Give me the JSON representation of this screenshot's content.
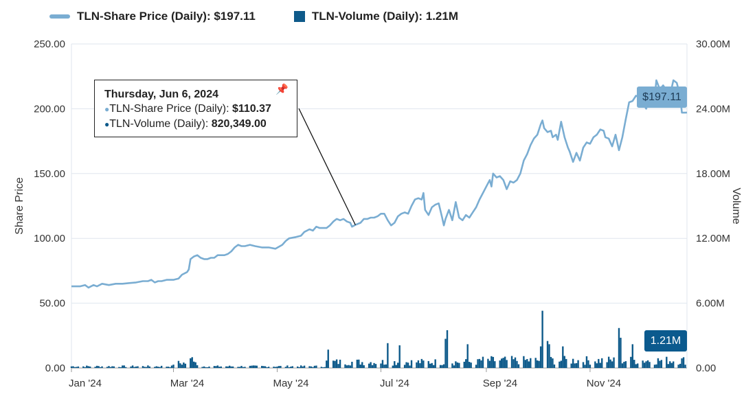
{
  "legend": {
    "price_label": "TLN-Share Price (Daily): $197.11",
    "volume_label": "TLN-Volume (Daily): 1.21M"
  },
  "tooltip": {
    "date": "Thursday, Jun 6, 2024",
    "price_label": "TLN-Share Price (Daily): ",
    "price_value": "$110.37",
    "volume_label": "TLN-Volume (Daily): ",
    "volume_value": "820,349.00"
  },
  "badges": {
    "price": "$197.11",
    "volume": "1.21M"
  },
  "colors": {
    "price_line": "#7aadd2",
    "volume_bar": "#0e5a8a",
    "price_badge": "#7aadd2",
    "volume_badge": "#0b5a8e",
    "grid": "#dfe6ee"
  },
  "chart_data": {
    "type": "line+bar",
    "title": "",
    "ylabel": "Share Price",
    "y2label": "Volume",
    "ylim": [
      0,
      250
    ],
    "y2lim": [
      0,
      30000000
    ],
    "y_ticks": [
      "0.00",
      "50.00",
      "100.00",
      "150.00",
      "200.00",
      "250.00"
    ],
    "y2_ticks": [
      "0.00",
      "6.00M",
      "12.00M",
      "18.00M",
      "24.00M",
      "30.00M"
    ],
    "x_ticks": [
      "Jan '24",
      "Mar '24",
      "May '24",
      "Jul '24",
      "Sep '24",
      "Nov '24"
    ],
    "x_tick_days": [
      0,
      60,
      121,
      182,
      244,
      305
    ],
    "x_range_days": [
      0,
      362
    ],
    "series": [
      {
        "name": "TLN-Share Price (Daily)",
        "type": "line",
        "points": [
          [
            0,
            63
          ],
          [
            5,
            63
          ],
          [
            8,
            64
          ],
          [
            10,
            62
          ],
          [
            13,
            64
          ],
          [
            15,
            63
          ],
          [
            18,
            65
          ],
          [
            22,
            64
          ],
          [
            26,
            65
          ],
          [
            30,
            65
          ],
          [
            34,
            65.5
          ],
          [
            38,
            66
          ],
          [
            42,
            67
          ],
          [
            45,
            67
          ],
          [
            47,
            68
          ],
          [
            49,
            66
          ],
          [
            51,
            67
          ],
          [
            53,
            67
          ],
          [
            56,
            68
          ],
          [
            60,
            68
          ],
          [
            63,
            69
          ],
          [
            65,
            72
          ],
          [
            68,
            74
          ],
          [
            69,
            76
          ],
          [
            70,
            84
          ],
          [
            72,
            86
          ],
          [
            74,
            87
          ],
          [
            76,
            85
          ],
          [
            78,
            84
          ],
          [
            80,
            84
          ],
          [
            82,
            85
          ],
          [
            84,
            85
          ],
          [
            86,
            87
          ],
          [
            88,
            87
          ],
          [
            90,
            87
          ],
          [
            92,
            88
          ],
          [
            94,
            90
          ],
          [
            96,
            93
          ],
          [
            98,
            95
          ],
          [
            100,
            94
          ],
          [
            102,
            94
          ],
          [
            105,
            95
          ],
          [
            108,
            94
          ],
          [
            112,
            93
          ],
          [
            116,
            93
          ],
          [
            120,
            92
          ],
          [
            124,
            95
          ],
          [
            126,
            98
          ],
          [
            128,
            100
          ],
          [
            132,
            101
          ],
          [
            135,
            102
          ],
          [
            137,
            105
          ],
          [
            140,
            107
          ],
          [
            142,
            106
          ],
          [
            144,
            109
          ],
          [
            146,
            108
          ],
          [
            150,
            108
          ],
          [
            152,
            110
          ],
          [
            154,
            113
          ],
          [
            156,
            115
          ],
          [
            158,
            114
          ],
          [
            160,
            115
          ],
          [
            162,
            113
          ],
          [
            164,
            112
          ],
          [
            165,
            109
          ],
          [
            167,
            110.37
          ],
          [
            170,
            112
          ],
          [
            172,
            115
          ],
          [
            174,
            115
          ],
          [
            176,
            116
          ],
          [
            178,
            116
          ],
          [
            180,
            117
          ],
          [
            182,
            119
          ],
          [
            184,
            119
          ],
          [
            186,
            114
          ],
          [
            188,
            110
          ],
          [
            190,
            112
          ],
          [
            192,
            117
          ],
          [
            194,
            119
          ],
          [
            196,
            120
          ],
          [
            198,
            119
          ],
          [
            200,
            125
          ],
          [
            202,
            130
          ],
          [
            204,
            131
          ],
          [
            206,
            130
          ],
          [
            207,
            135
          ],
          [
            208,
            122
          ],
          [
            210,
            118
          ],
          [
            212,
            124
          ],
          [
            214,
            126
          ],
          [
            216,
            127
          ],
          [
            218,
            116
          ],
          [
            219,
            110
          ],
          [
            220,
            115
          ],
          [
            222,
            122
          ],
          [
            224,
            114
          ],
          [
            226,
            128
          ],
          [
            228,
            116
          ],
          [
            230,
            114
          ],
          [
            232,
            118
          ],
          [
            234,
            116
          ],
          [
            236,
            120
          ],
          [
            238,
            124
          ],
          [
            240,
            130
          ],
          [
            242,
            135
          ],
          [
            244,
            140
          ],
          [
            246,
            145
          ],
          [
            247,
            140
          ],
          [
            248,
            150
          ],
          [
            250,
            147
          ],
          [
            252,
            148
          ],
          [
            254,
            145
          ],
          [
            256,
            138
          ],
          [
            258,
            144
          ],
          [
            260,
            143
          ],
          [
            262,
            145
          ],
          [
            264,
            150
          ],
          [
            266,
            160
          ],
          [
            268,
            165
          ],
          [
            270,
            172
          ],
          [
            272,
            177
          ],
          [
            274,
            180
          ],
          [
            276,
            188
          ],
          [
            277,
            191
          ],
          [
            278,
            185
          ],
          [
            280,
            182
          ],
          [
            282,
            183
          ],
          [
            283,
            178
          ],
          [
            285,
            180
          ],
          [
            286,
            176
          ],
          [
            288,
            190
          ],
          [
            290,
            178
          ],
          [
            292,
            170
          ],
          [
            293,
            167
          ],
          [
            295,
            159
          ],
          [
            297,
            166
          ],
          [
            299,
            160
          ],
          [
            301,
            170
          ],
          [
            303,
            174
          ],
          [
            305,
            173
          ],
          [
            307,
            178
          ],
          [
            309,
            180
          ],
          [
            311,
            184
          ],
          [
            313,
            183
          ],
          [
            314,
            178
          ],
          [
            316,
            177
          ],
          [
            318,
            171
          ],
          [
            320,
            180
          ],
          [
            322,
            168
          ],
          [
            324,
            178
          ],
          [
            326,
            192
          ],
          [
            328,
            205
          ],
          [
            330,
            206
          ],
          [
            332,
            210
          ],
          [
            334,
            209
          ],
          [
            336,
            205
          ],
          [
            338,
            200
          ],
          [
            340,
            210
          ],
          [
            341,
            215
          ],
          [
            342,
            210
          ],
          [
            343,
            208
          ],
          [
            344,
            222
          ],
          [
            346,
            215
          ],
          [
            348,
            218
          ],
          [
            350,
            214
          ],
          [
            352,
            210
          ],
          [
            354,
            222
          ],
          [
            356,
            220
          ],
          [
            358,
            210
          ],
          [
            359,
            197
          ],
          [
            361,
            197
          ],
          [
            362,
            197.11
          ]
        ]
      },
      {
        "name": "TLN-Volume (Daily)",
        "type": "bar",
        "pattern_seed": 7,
        "spikes": [
          [
            70,
            900000
          ],
          [
            71,
            1000000
          ],
          [
            151,
            1700000
          ],
          [
            167,
            820349
          ],
          [
            186,
            2300000
          ],
          [
            193,
            2100000
          ],
          [
            220,
            2700000
          ],
          [
            221,
            3500000
          ],
          [
            229,
            3200000
          ],
          [
            233,
            2200000
          ],
          [
            276,
            2000000
          ],
          [
            277,
            5300000
          ],
          [
            280,
            2500000
          ],
          [
            281,
            2200000
          ],
          [
            289,
            2000000
          ],
          [
            322,
            3700000
          ],
          [
            323,
            2800000
          ],
          [
            330,
            2200000
          ]
        ]
      }
    ]
  }
}
